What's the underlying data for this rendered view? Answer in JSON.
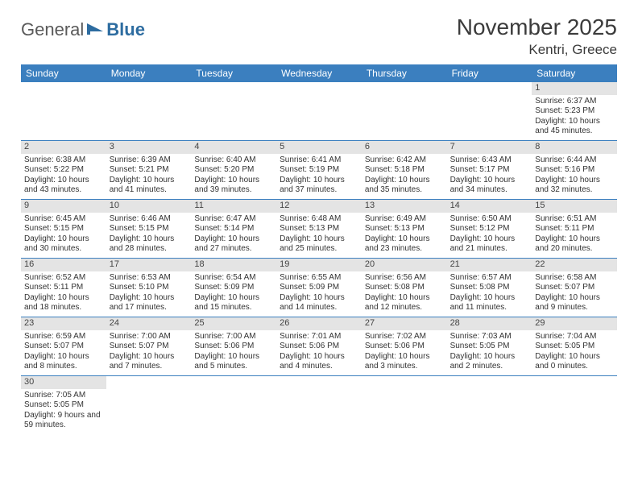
{
  "logo": {
    "text1": "General",
    "text2": "Blue"
  },
  "title": "November 2025",
  "location": "Kentri, Greece",
  "weekdays": [
    "Sunday",
    "Monday",
    "Tuesday",
    "Wednesday",
    "Thursday",
    "Friday",
    "Saturday"
  ],
  "colors": {
    "header_bg": "#3b7fbf",
    "header_fg": "#ffffff",
    "daynum_bg": "#e4e4e4",
    "week_border": "#3b7fbf"
  },
  "grid": [
    [
      {
        "blank": true
      },
      {
        "blank": true
      },
      {
        "blank": true
      },
      {
        "blank": true
      },
      {
        "blank": true
      },
      {
        "blank": true
      },
      {
        "num": "1",
        "sunrise": "Sunrise: 6:37 AM",
        "sunset": "Sunset: 5:23 PM",
        "daylight": "Daylight: 10 hours and 45 minutes."
      }
    ],
    [
      {
        "num": "2",
        "sunrise": "Sunrise: 6:38 AM",
        "sunset": "Sunset: 5:22 PM",
        "daylight": "Daylight: 10 hours and 43 minutes."
      },
      {
        "num": "3",
        "sunrise": "Sunrise: 6:39 AM",
        "sunset": "Sunset: 5:21 PM",
        "daylight": "Daylight: 10 hours and 41 minutes."
      },
      {
        "num": "4",
        "sunrise": "Sunrise: 6:40 AM",
        "sunset": "Sunset: 5:20 PM",
        "daylight": "Daylight: 10 hours and 39 minutes."
      },
      {
        "num": "5",
        "sunrise": "Sunrise: 6:41 AM",
        "sunset": "Sunset: 5:19 PM",
        "daylight": "Daylight: 10 hours and 37 minutes."
      },
      {
        "num": "6",
        "sunrise": "Sunrise: 6:42 AM",
        "sunset": "Sunset: 5:18 PM",
        "daylight": "Daylight: 10 hours and 35 minutes."
      },
      {
        "num": "7",
        "sunrise": "Sunrise: 6:43 AM",
        "sunset": "Sunset: 5:17 PM",
        "daylight": "Daylight: 10 hours and 34 minutes."
      },
      {
        "num": "8",
        "sunrise": "Sunrise: 6:44 AM",
        "sunset": "Sunset: 5:16 PM",
        "daylight": "Daylight: 10 hours and 32 minutes."
      }
    ],
    [
      {
        "num": "9",
        "sunrise": "Sunrise: 6:45 AM",
        "sunset": "Sunset: 5:15 PM",
        "daylight": "Daylight: 10 hours and 30 minutes."
      },
      {
        "num": "10",
        "sunrise": "Sunrise: 6:46 AM",
        "sunset": "Sunset: 5:15 PM",
        "daylight": "Daylight: 10 hours and 28 minutes."
      },
      {
        "num": "11",
        "sunrise": "Sunrise: 6:47 AM",
        "sunset": "Sunset: 5:14 PM",
        "daylight": "Daylight: 10 hours and 27 minutes."
      },
      {
        "num": "12",
        "sunrise": "Sunrise: 6:48 AM",
        "sunset": "Sunset: 5:13 PM",
        "daylight": "Daylight: 10 hours and 25 minutes."
      },
      {
        "num": "13",
        "sunrise": "Sunrise: 6:49 AM",
        "sunset": "Sunset: 5:13 PM",
        "daylight": "Daylight: 10 hours and 23 minutes."
      },
      {
        "num": "14",
        "sunrise": "Sunrise: 6:50 AM",
        "sunset": "Sunset: 5:12 PM",
        "daylight": "Daylight: 10 hours and 21 minutes."
      },
      {
        "num": "15",
        "sunrise": "Sunrise: 6:51 AM",
        "sunset": "Sunset: 5:11 PM",
        "daylight": "Daylight: 10 hours and 20 minutes."
      }
    ],
    [
      {
        "num": "16",
        "sunrise": "Sunrise: 6:52 AM",
        "sunset": "Sunset: 5:11 PM",
        "daylight": "Daylight: 10 hours and 18 minutes."
      },
      {
        "num": "17",
        "sunrise": "Sunrise: 6:53 AM",
        "sunset": "Sunset: 5:10 PM",
        "daylight": "Daylight: 10 hours and 17 minutes."
      },
      {
        "num": "18",
        "sunrise": "Sunrise: 6:54 AM",
        "sunset": "Sunset: 5:09 PM",
        "daylight": "Daylight: 10 hours and 15 minutes."
      },
      {
        "num": "19",
        "sunrise": "Sunrise: 6:55 AM",
        "sunset": "Sunset: 5:09 PM",
        "daylight": "Daylight: 10 hours and 14 minutes."
      },
      {
        "num": "20",
        "sunrise": "Sunrise: 6:56 AM",
        "sunset": "Sunset: 5:08 PM",
        "daylight": "Daylight: 10 hours and 12 minutes."
      },
      {
        "num": "21",
        "sunrise": "Sunrise: 6:57 AM",
        "sunset": "Sunset: 5:08 PM",
        "daylight": "Daylight: 10 hours and 11 minutes."
      },
      {
        "num": "22",
        "sunrise": "Sunrise: 6:58 AM",
        "sunset": "Sunset: 5:07 PM",
        "daylight": "Daylight: 10 hours and 9 minutes."
      }
    ],
    [
      {
        "num": "23",
        "sunrise": "Sunrise: 6:59 AM",
        "sunset": "Sunset: 5:07 PM",
        "daylight": "Daylight: 10 hours and 8 minutes."
      },
      {
        "num": "24",
        "sunrise": "Sunrise: 7:00 AM",
        "sunset": "Sunset: 5:07 PM",
        "daylight": "Daylight: 10 hours and 7 minutes."
      },
      {
        "num": "25",
        "sunrise": "Sunrise: 7:00 AM",
        "sunset": "Sunset: 5:06 PM",
        "daylight": "Daylight: 10 hours and 5 minutes."
      },
      {
        "num": "26",
        "sunrise": "Sunrise: 7:01 AM",
        "sunset": "Sunset: 5:06 PM",
        "daylight": "Daylight: 10 hours and 4 minutes."
      },
      {
        "num": "27",
        "sunrise": "Sunrise: 7:02 AM",
        "sunset": "Sunset: 5:06 PM",
        "daylight": "Daylight: 10 hours and 3 minutes."
      },
      {
        "num": "28",
        "sunrise": "Sunrise: 7:03 AM",
        "sunset": "Sunset: 5:05 PM",
        "daylight": "Daylight: 10 hours and 2 minutes."
      },
      {
        "num": "29",
        "sunrise": "Sunrise: 7:04 AM",
        "sunset": "Sunset: 5:05 PM",
        "daylight": "Daylight: 10 hours and 0 minutes."
      }
    ],
    [
      {
        "num": "30",
        "sunrise": "Sunrise: 7:05 AM",
        "sunset": "Sunset: 5:05 PM",
        "daylight": "Daylight: 9 hours and 59 minutes."
      },
      {
        "blank": true
      },
      {
        "blank": true
      },
      {
        "blank": true
      },
      {
        "blank": true
      },
      {
        "blank": true
      },
      {
        "blank": true
      }
    ]
  ]
}
